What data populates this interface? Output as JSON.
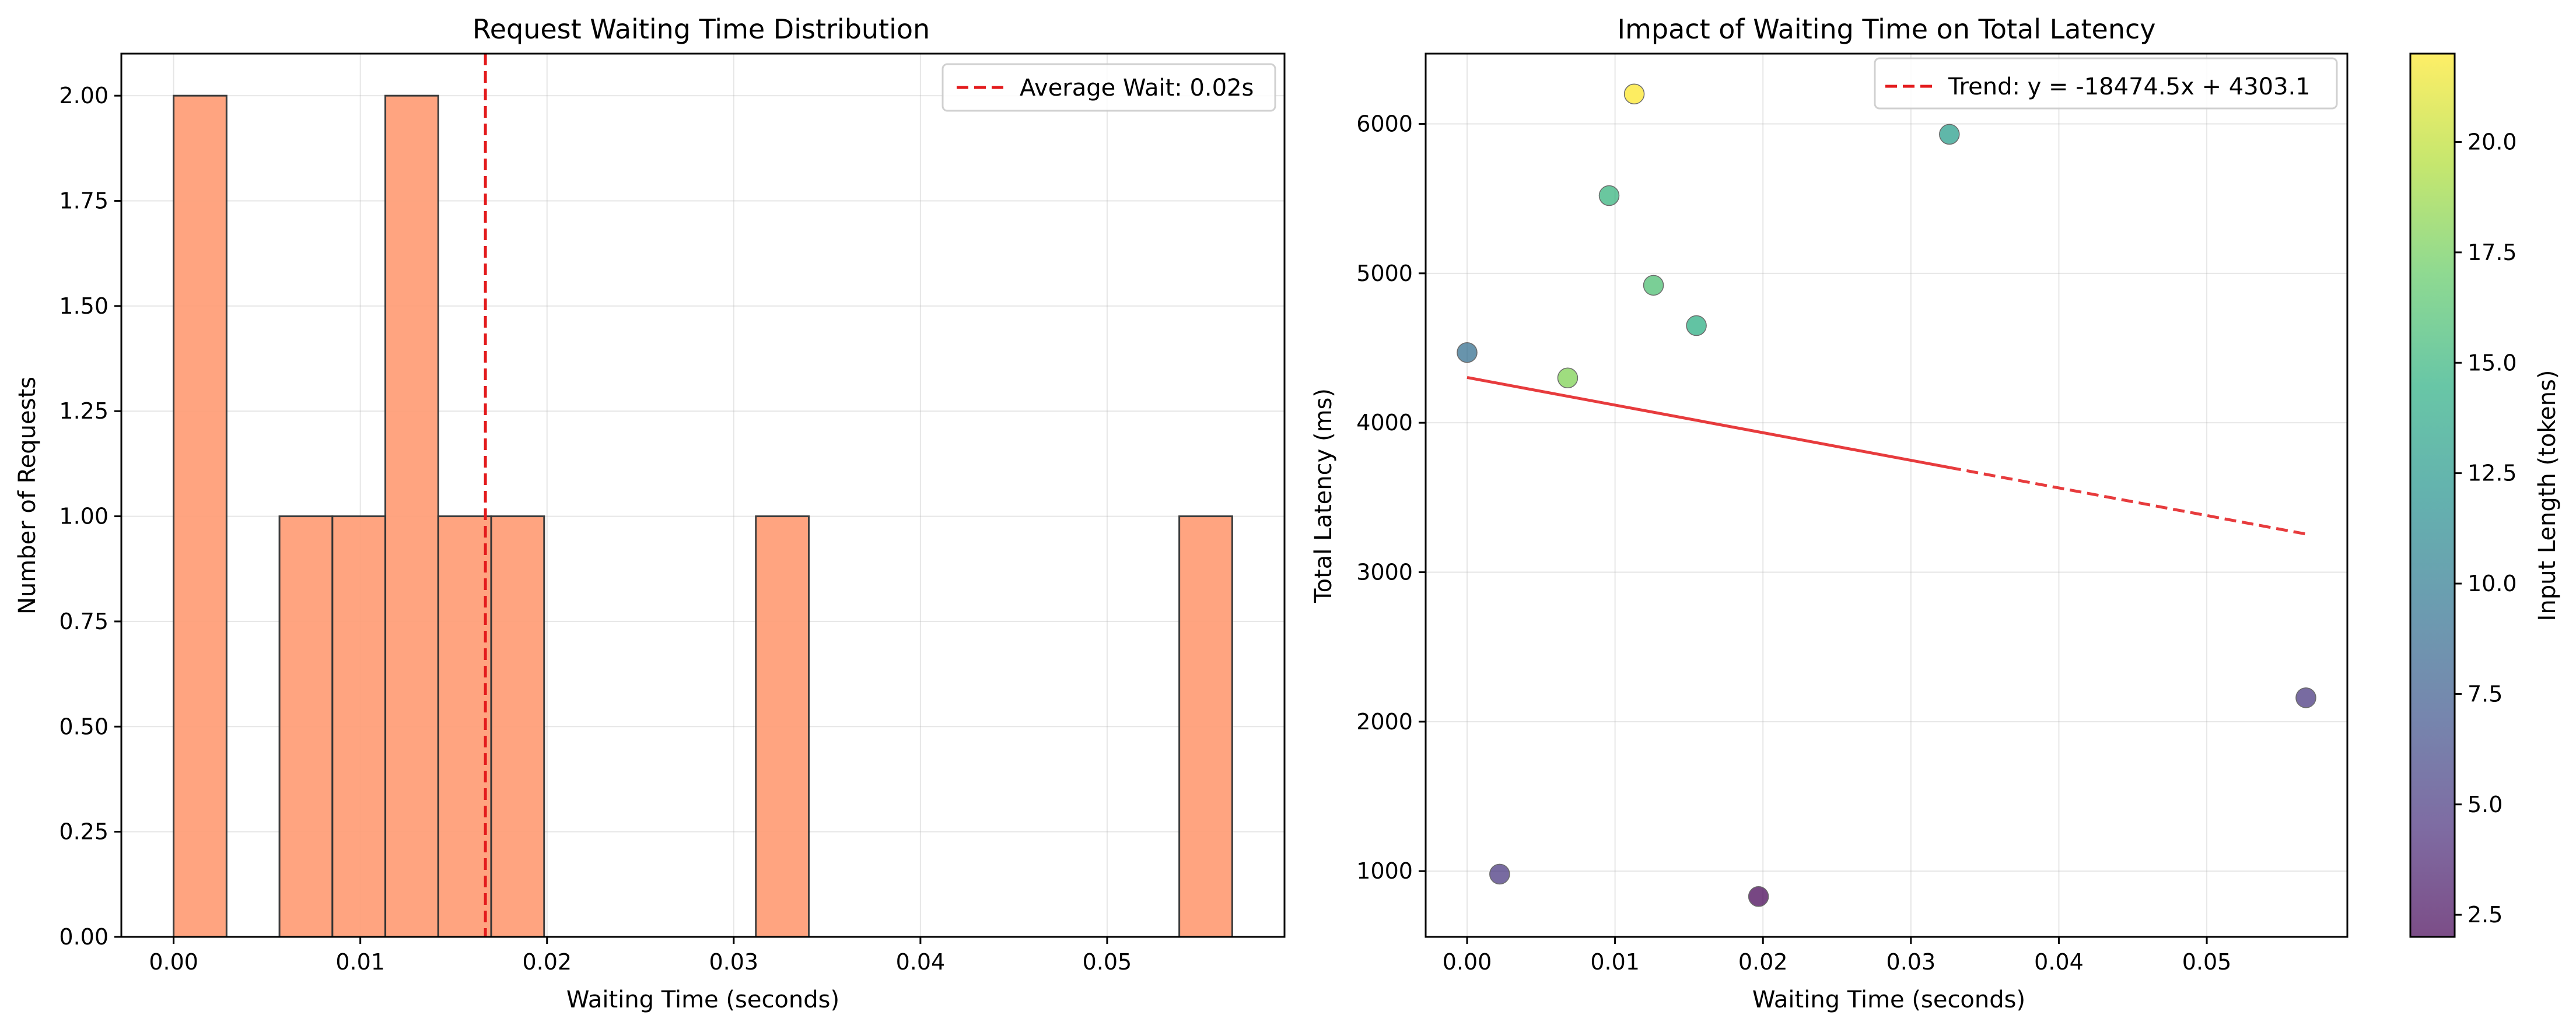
{
  "chart_data": [
    {
      "type": "bar",
      "title": "Request Waiting Time Distribution",
      "xlabel": "Waiting Time (seconds)",
      "ylabel": "Number of Requests",
      "xlim": [
        -0.0028,
        0.0595
      ],
      "ylim": [
        0,
        2.1
      ],
      "xticks": [
        0.0,
        0.01,
        0.02,
        0.03,
        0.04,
        0.05
      ],
      "xtick_labels": [
        "0.00",
        "0.01",
        "0.02",
        "0.03",
        "0.04",
        "0.05"
      ],
      "yticks": [
        0,
        0.25,
        0.5,
        0.75,
        1.0,
        1.25,
        1.5,
        1.75,
        2.0
      ],
      "ytick_labels": [
        "0.00",
        "0.25",
        "0.50",
        "0.75",
        "1.00",
        "1.25",
        "1.50",
        "1.75",
        "2.00"
      ],
      "bin_edges": [
        0.0,
        0.002835,
        0.00567,
        0.008505,
        0.01134,
        0.014175,
        0.01701,
        0.019845,
        0.02268,
        0.025515,
        0.02835,
        0.031185,
        0.03402,
        0.036855,
        0.03969,
        0.042525,
        0.04536,
        0.048195,
        0.05103,
        0.053865,
        0.0567
      ],
      "values": [
        2,
        0,
        1,
        1,
        2,
        1,
        1,
        0,
        0,
        0,
        0,
        1,
        0,
        0,
        0,
        0,
        0,
        0,
        0,
        1
      ],
      "bar_color": "#ffa07a",
      "edge_color": "#333333",
      "average_line": {
        "x": 0.0167,
        "label": "Average Wait: 0.02s",
        "color": "#e31a1c"
      },
      "grid": true,
      "legend_placement": "upper-right"
    },
    {
      "type": "scatter",
      "title": "Impact of Waiting Time on Total Latency",
      "xlabel": "Waiting Time (seconds)",
      "ylabel": "Total Latency (ms)",
      "xlim": [
        -0.0028,
        0.0595
      ],
      "ylim": [
        560,
        6470
      ],
      "xticks": [
        0.0,
        0.01,
        0.02,
        0.03,
        0.04,
        0.05
      ],
      "xtick_labels": [
        "0.00",
        "0.01",
        "0.02",
        "0.03",
        "0.04",
        "0.05"
      ],
      "yticks": [
        1000,
        2000,
        3000,
        4000,
        5000,
        6000
      ],
      "ytick_labels": [
        "1000",
        "2000",
        "3000",
        "4000",
        "5000",
        "6000"
      ],
      "points": [
        {
          "x": 0.0,
          "y": 4470,
          "c": 9
        },
        {
          "x": 0.0022,
          "y": 980,
          "c": 5
        },
        {
          "x": 0.0068,
          "y": 4300,
          "c": 18
        },
        {
          "x": 0.0096,
          "y": 5520,
          "c": 15
        },
        {
          "x": 0.0113,
          "y": 6200,
          "c": 22
        },
        {
          "x": 0.0126,
          "y": 4920,
          "c": 16
        },
        {
          "x": 0.0155,
          "y": 4650,
          "c": 14.5
        },
        {
          "x": 0.0197,
          "y": 830,
          "c": 2
        },
        {
          "x": 0.0326,
          "y": 5930,
          "c": 13
        },
        {
          "x": 0.0567,
          "y": 2160,
          "c": 5
        }
      ],
      "trend": {
        "label": "Trend: y = -18474.5x + 4303.1",
        "slope": -18474.5,
        "intercept": 4303.1,
        "x_range": [
          0.0,
          0.0567
        ],
        "color": "#e31a1c"
      },
      "colorbar": {
        "label": "Input Length (tokens)",
        "range": [
          2,
          22
        ],
        "ticks": [
          2.5,
          5.0,
          7.5,
          10.0,
          12.5,
          15.0,
          17.5,
          20.0
        ],
        "tick_labels": [
          "2.5",
          "5.0",
          "7.5",
          "10.0",
          "12.5",
          "15.0",
          "17.5",
          "20.0"
        ],
        "colormap": "viridis"
      },
      "grid": true,
      "legend_placement": "upper-right"
    }
  ]
}
